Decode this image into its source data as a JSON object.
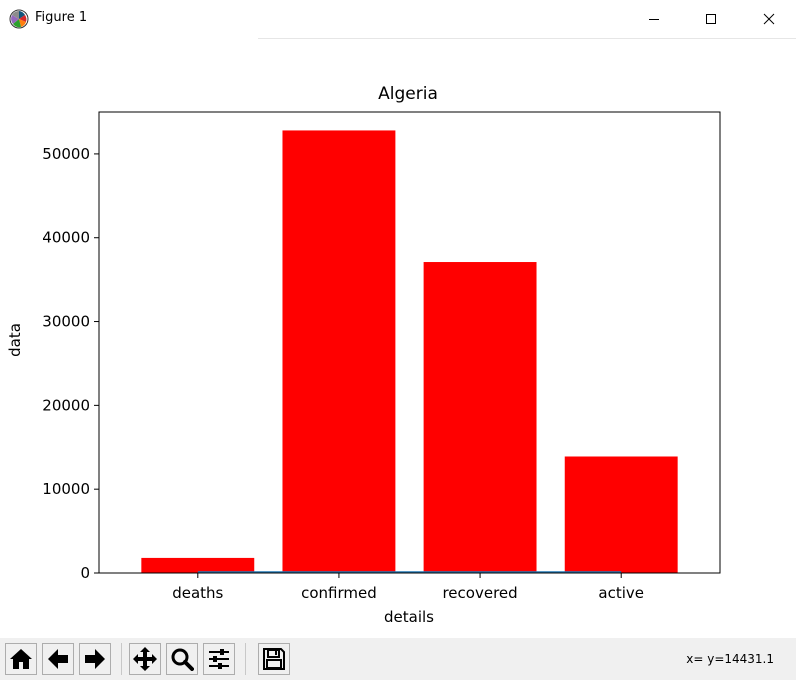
{
  "window": {
    "title": "Figure 1",
    "app_icon": "matplotlib-icon",
    "controls": [
      "minimize-icon",
      "maximize-icon",
      "close-icon"
    ]
  },
  "chart_data": {
    "type": "bar",
    "title": "Algeria",
    "xlabel": "details",
    "ylabel": "data",
    "categories": [
      "deaths",
      "confirmed",
      "recovered",
      "active"
    ],
    "values": [
      1800,
      52800,
      37100,
      13900
    ],
    "ylim": [
      0,
      55000
    ],
    "yticks": [
      0,
      10000,
      20000,
      30000,
      40000,
      50000
    ],
    "bar_color": "#ff0000",
    "line_color": "#1f77b4",
    "grid": false,
    "legend": false
  },
  "toolbar": {
    "buttons": [
      "home-icon",
      "back-icon",
      "forward-icon",
      "pan-icon",
      "zoom-icon",
      "configure-subplots-icon",
      "save-icon"
    ],
    "coords": "x= y=14431.1"
  }
}
